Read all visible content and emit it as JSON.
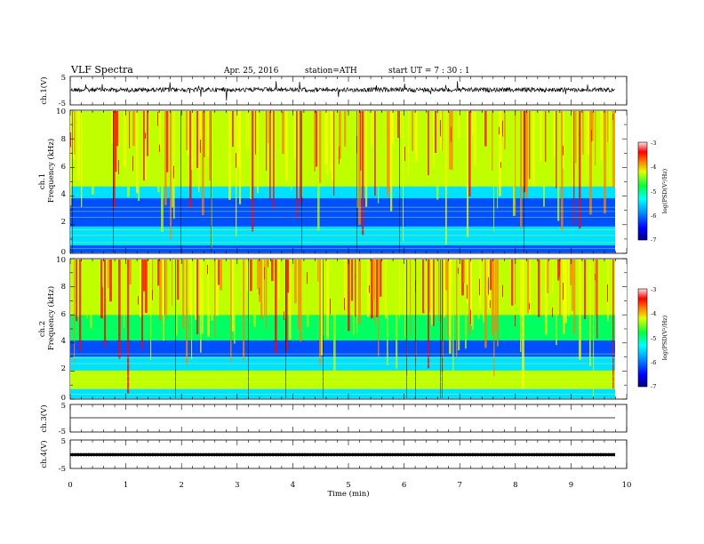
{
  "header": {
    "title": "VLF  Spectra",
    "date": "Apr. 25, 2016",
    "station": "station=ATH",
    "start": "start  UT  =   7  : 30 : 1"
  },
  "panels": {
    "ch1_wave": {
      "ylabel": "ch.1(V)",
      "ticks": [
        "5",
        "-5"
      ]
    },
    "ch1_spec": {
      "ylabel_ch": "ch.1",
      "ylabel": "Frequency  (kHz)",
      "ticks": [
        "10",
        "8",
        "6",
        "4",
        "2",
        "0"
      ]
    },
    "ch2_spec": {
      "ylabel_ch": "ch.2",
      "ylabel": "Frequency  (kHz)",
      "ticks": [
        "10",
        "8",
        "6",
        "4",
        "2",
        "0"
      ]
    },
    "ch3_wave": {
      "ylabel": "ch.3(V)",
      "ticks": [
        "5",
        "-5"
      ]
    },
    "ch4_wave": {
      "ylabel": "ch.4(V)",
      "ticks": [
        "5",
        "-5"
      ]
    }
  },
  "colorbar": {
    "label": "log(PSD(V²/Hz)",
    "ticks": [
      "-3",
      "-4",
      "-5",
      "-6",
      "-7"
    ],
    "colors": [
      "#0000a0",
      "#0050ff",
      "#00e0ff",
      "#00ff60",
      "#c0ff00",
      "#ffff00",
      "#ff8000",
      "#ff0000",
      "#ffffff"
    ]
  },
  "xaxis": {
    "label": "Time  (min)",
    "ticks": [
      "0",
      "1",
      "2",
      "3",
      "4",
      "5",
      "6",
      "7",
      "8",
      "9",
      "10"
    ]
  },
  "chart_data": [
    {
      "type": "line",
      "title": "",
      "ylabel": "ch.1(V)",
      "ylim": [
        -5,
        5
      ],
      "xlim": [
        0,
        10
      ],
      "description_values": {
        "baseline_V": 0,
        "noise_amplitude_V": 1,
        "max_spike_V": 3
      }
    },
    {
      "type": "heatmap",
      "ylabel": "Frequency  (kHz)",
      "ylim": [
        0,
        10
      ],
      "xlim": [
        0,
        10
      ],
      "data_end_min": 9.8,
      "zlim": [
        -7,
        -3
      ],
      "zlabel": "log(PSD(V²/Hz)"
    },
    {
      "type": "heatmap",
      "ylabel": "Frequency  (kHz)",
      "ylim": [
        0,
        10
      ],
      "xlim": [
        0,
        10
      ],
      "data_end_min": 9.8,
      "zlim": [
        -7,
        -3
      ],
      "zlabel": "log(PSD(V²/Hz)"
    },
    {
      "type": "line",
      "ylabel": "ch.3(V)",
      "ylim": [
        -5,
        5
      ],
      "xlim": [
        0,
        10
      ],
      "constant_V": 0
    },
    {
      "type": "line",
      "ylabel": "ch.4(V)",
      "ylim": [
        -5,
        5
      ],
      "xlim": [
        0,
        10
      ],
      "constant_V": 0
    }
  ]
}
